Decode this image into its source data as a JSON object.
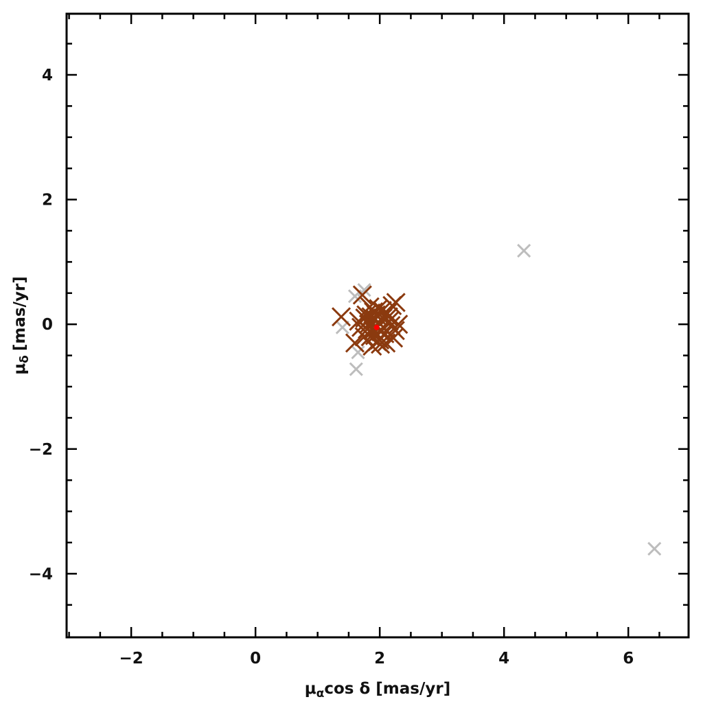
{
  "chart_data": {
    "type": "scatter",
    "xlabel": {
      "symbol": "μ",
      "sub": "α",
      "rest": "cos δ [mas/yr]"
    },
    "ylabel": {
      "symbol": "μ",
      "sub": "δ",
      "rest": "[mas/yr]"
    },
    "xlim": [
      -3.04,
      6.97
    ],
    "ylim": [
      -5.02,
      4.98
    ],
    "xticks": [
      {
        "value": -2,
        "label": "−2"
      },
      0,
      2,
      4,
      6
    ],
    "yticks": [
      {
        "value": -4,
        "label": "−4"
      },
      {
        "value": -2,
        "label": "−2"
      },
      0,
      2,
      4
    ],
    "xminorticks": [
      -3,
      -2.5,
      -1.5,
      -1,
      -0.5,
      0.5,
      1,
      1.5,
      2.5,
      3,
      3.5,
      4.5,
      5,
      5.5,
      6.5
    ],
    "yminorticks": [
      -4.5,
      -3.5,
      -3,
      -2.5,
      -1.5,
      -1,
      -0.5,
      0.5,
      1,
      1.5,
      2.5,
      3,
      3.5,
      4.5
    ],
    "grid": false,
    "series": [
      {
        "color": "#bdbdbd",
        "marker": "x",
        "x": [
          4.32,
          6.42,
          1.62,
          1.75,
          1.6,
          1.4,
          1.65
        ],
        "values": [
          1.18,
          -3.6,
          -0.72,
          0.55,
          0.45,
          -0.05,
          -0.45
        ]
      },
      {
        "color": "#8b3a0f",
        "marker": "x",
        "x": [
          1.38,
          1.72,
          1.6,
          1.95,
          2.05,
          1.85,
          2.15,
          2.25,
          1.78,
          2.0,
          1.9,
          2.1,
          1.7,
          2.2,
          1.88,
          1.98,
          2.08,
          1.82,
          1.93,
          2.02,
          1.75,
          2.12,
          1.86,
          1.96,
          2.18,
          1.8,
          2.04,
          1.92,
          2.3,
          1.66,
          2.22,
          1.84,
          1.99,
          2.06,
          1.89,
          2.14,
          1.76,
          2.01,
          1.94,
          2.26
        ],
        "values": [
          0.12,
          0.47,
          -0.3,
          -0.05,
          0.1,
          -0.2,
          0.05,
          -0.1,
          0.15,
          -0.25,
          0.2,
          -0.3,
          -0.05,
          0.3,
          -0.35,
          0.25,
          -0.15,
          0.0,
          0.08,
          -0.12,
          -0.2,
          0.18,
          0.12,
          -0.28,
          -0.02,
          -0.08,
          0.22,
          -0.18,
          0.0,
          0.05,
          -0.22,
          0.28,
          0.02,
          -0.05,
          -0.1,
          0.12,
          0.1,
          -0.32,
          0.15,
          0.35
        ]
      },
      {
        "color": "#ff0000",
        "marker": "dot",
        "x": [
          1.95
        ],
        "values": [
          -0.05
        ]
      }
    ]
  }
}
